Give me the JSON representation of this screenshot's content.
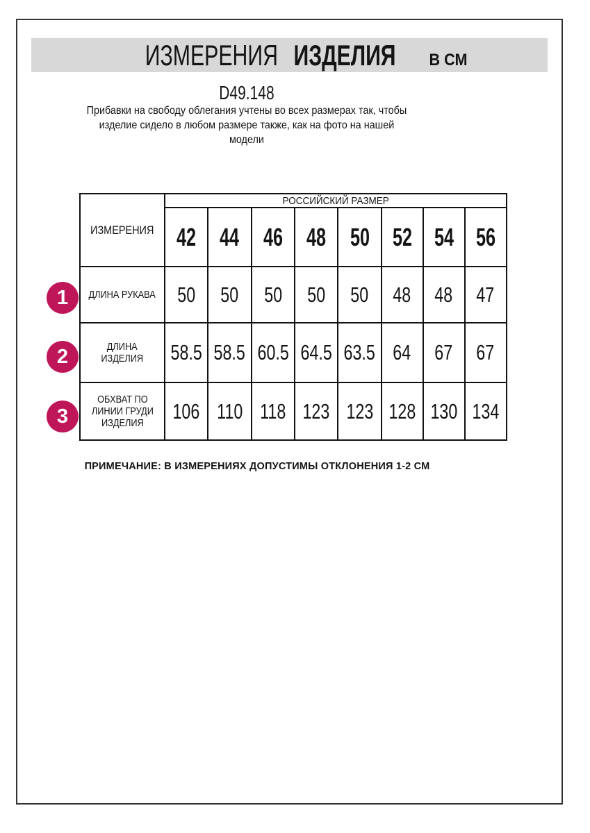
{
  "header": {
    "title_regular": "ИЗМЕРЕНИЯ",
    "title_bold": "ИЗДЕЛИЯ",
    "title_units": "В СМ",
    "model": "D49.148",
    "description": "Прибавки на свободу облегания учтены во всех размерах так, чтобы\nизделие сидело в любом размере также, как на фото на нашей\nмодели"
  },
  "table": {
    "measurements_header": "ИЗМЕРЕНИЯ",
    "size_group_header": "РОССИЙСКИЙ РАЗМЕР",
    "sizes": [
      "42",
      "44",
      "46",
      "48",
      "50",
      "52",
      "54",
      "56"
    ],
    "rows": [
      {
        "num": "1",
        "label": "ДЛИНА РУКАВА",
        "values": [
          "50",
          "50",
          "50",
          "50",
          "50",
          "48",
          "48",
          "47"
        ]
      },
      {
        "num": "2",
        "label": "ДЛИНА\nИЗДЕЛИЯ",
        "values": [
          "58.5",
          "58.5",
          "60.5",
          "64.5",
          "63.5",
          "64",
          "67",
          "67"
        ]
      },
      {
        "num": "3",
        "label": "ОБХВАТ ПО\nЛИНИИ ГРУДИ\nИЗДЕЛИЯ",
        "values": [
          "106",
          "110",
          "118",
          "123",
          "123",
          "128",
          "130",
          "134"
        ]
      }
    ]
  },
  "footer": {
    "note": "ПРИМЕЧАНИЕ: В ИЗМЕРЕНИЯХ ДОПУСТИМЫ ОТКЛОНЕНИЯ 1-2 СМ"
  },
  "colors": {
    "badge": "#bf1659",
    "title_band": "#d8d8d8",
    "frame_border": "#333333",
    "table_border": "#111111"
  }
}
